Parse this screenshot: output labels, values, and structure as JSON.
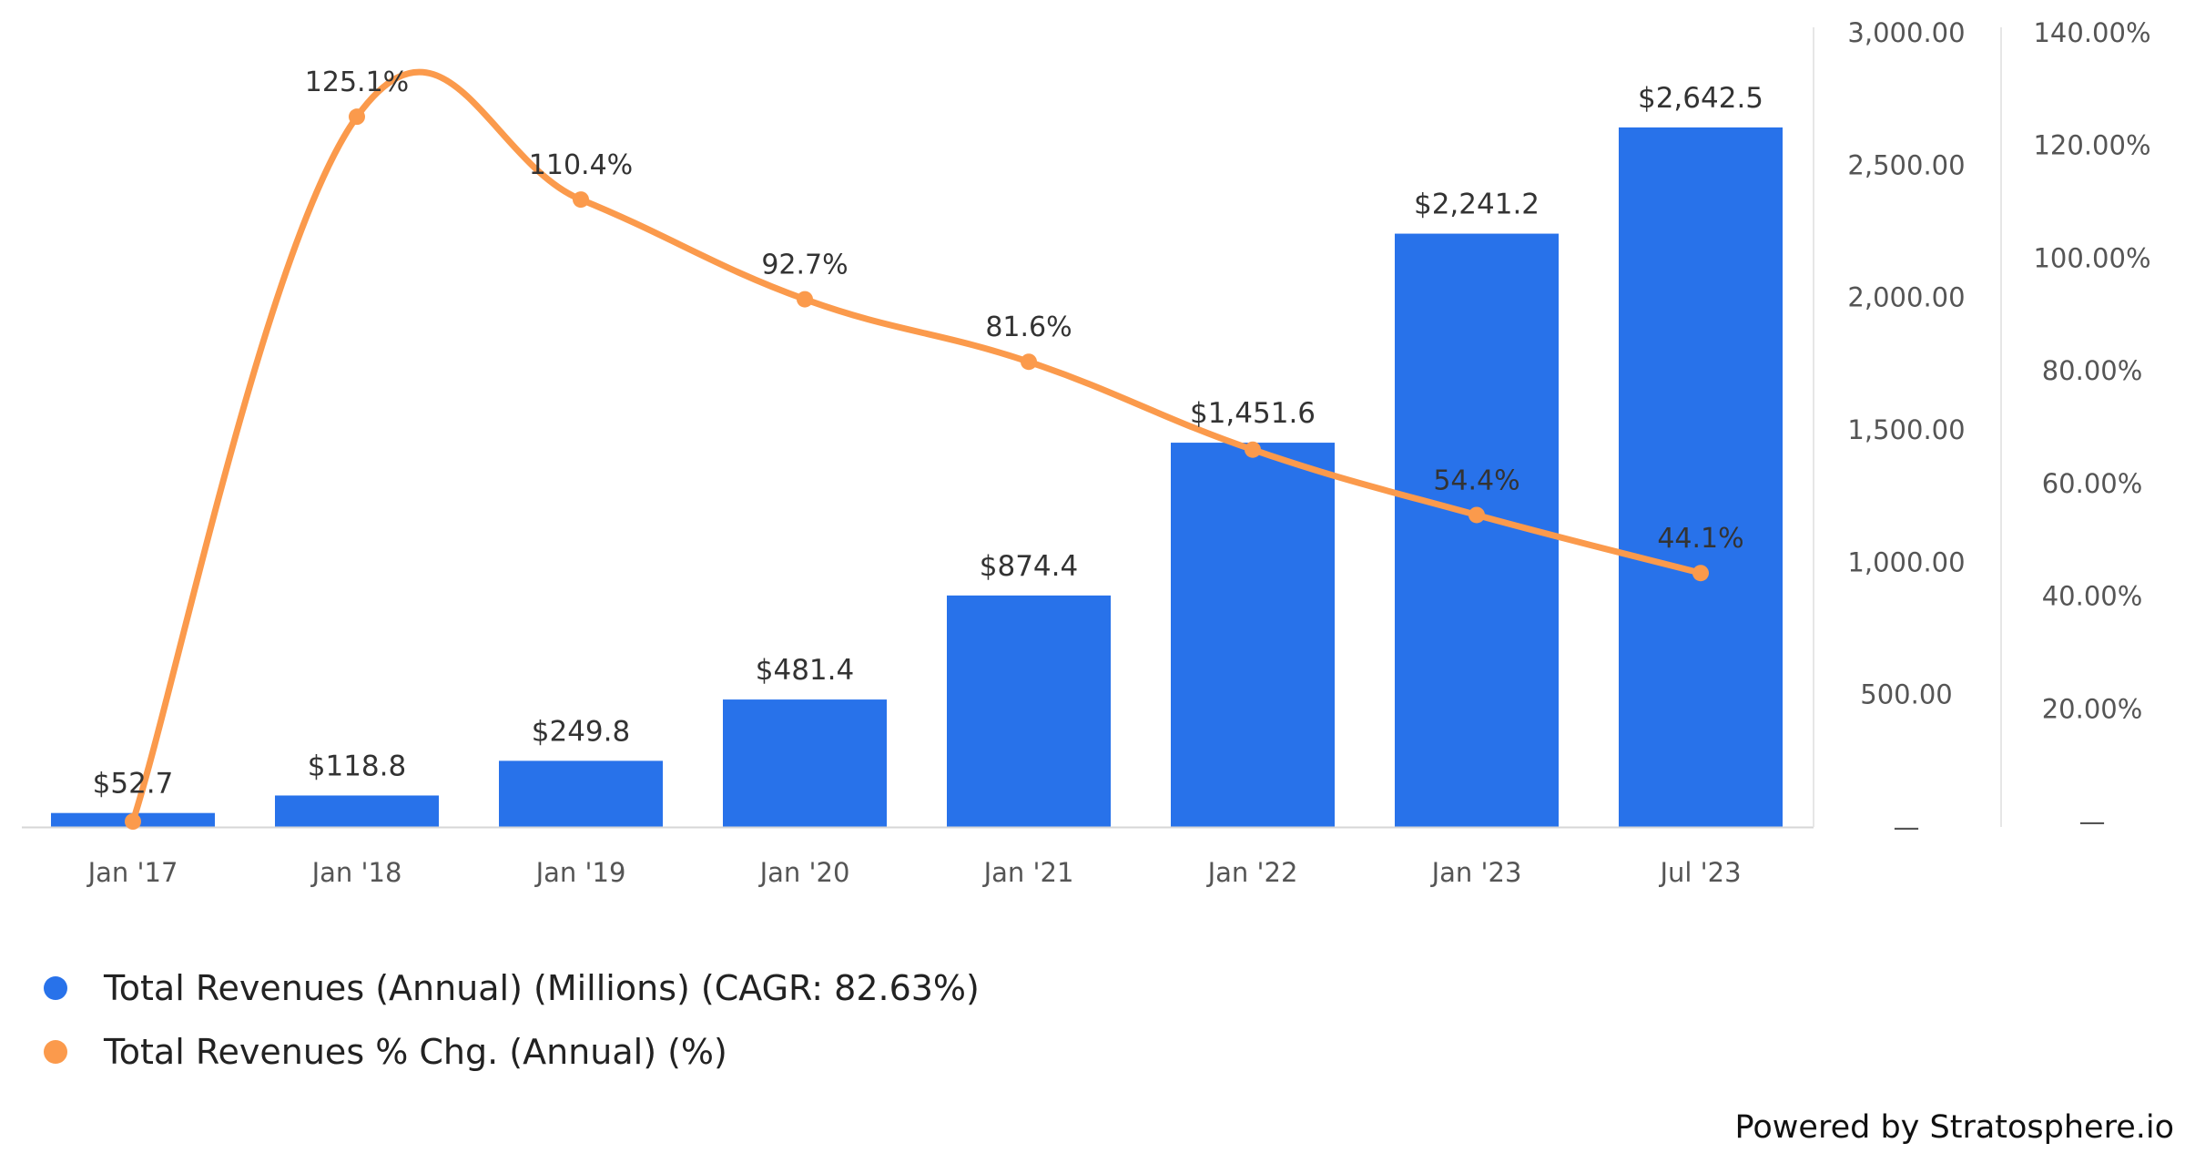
{
  "chart_data": {
    "type": "bar+line",
    "categories": [
      "Jan '17",
      "Jan '18",
      "Jan '19",
      "Jan '20",
      "Jan '21",
      "Jan '22",
      "Jan '23",
      "Jul '23"
    ],
    "series": [
      {
        "name": "Total Revenues (Annual) (Millions) (CAGR: 82.63%)",
        "type": "bar",
        "axis": "left",
        "color": "#2872EA",
        "values": [
          52.7,
          118.8,
          249.8,
          481.4,
          874.4,
          1451.6,
          2241.2,
          2642.5
        ],
        "labels": [
          "$52.7",
          "$118.8",
          "$249.8",
          "$481.4",
          "$874.4",
          "$1,451.6",
          "$2,241.2",
          "$2,642.5"
        ]
      },
      {
        "name": "Total Revenues % Chg. (Annual) (%)",
        "type": "line",
        "axis": "right",
        "color": "#FB9A4C",
        "values": [
          null,
          125.1,
          110.4,
          92.7,
          81.6,
          66.0,
          54.4,
          44.1
        ],
        "labels": [
          "",
          "125.1%",
          "110.4%",
          "92.7%",
          "81.6%",
          "",
          "54.4%",
          "44.1%"
        ]
      }
    ],
    "y_left": {
      "range": [
        0,
        3000
      ],
      "ticks": [
        0,
        500,
        1000,
        1500,
        2000,
        2500,
        3000
      ],
      "tick_labels": [
        "—",
        "500.00",
        "1,000.00",
        "1,500.00",
        "2,000.00",
        "2,500.00",
        "3,000.00"
      ]
    },
    "y_right": {
      "range": [
        0,
        140
      ],
      "ticks": [
        0,
        20,
        40,
        60,
        80,
        100,
        120,
        140
      ],
      "tick_labels": [
        "—",
        "20.00%",
        "40.00%",
        "60.00%",
        "80.00%",
        "100.00%",
        "120.00%",
        "140.00%"
      ]
    },
    "title": "",
    "xlabel": "",
    "grid": false,
    "legend_position": "bottom-left"
  },
  "legend": [
    {
      "label": "Total Revenues (Annual) (Millions) (CAGR: 82.63%)",
      "color": "#2872EA"
    },
    {
      "label": "Total Revenues % Chg. (Annual) (%)",
      "color": "#FB9A4C"
    }
  ],
  "footer": {
    "powered_by": "Powered by Stratosphere.io"
  }
}
